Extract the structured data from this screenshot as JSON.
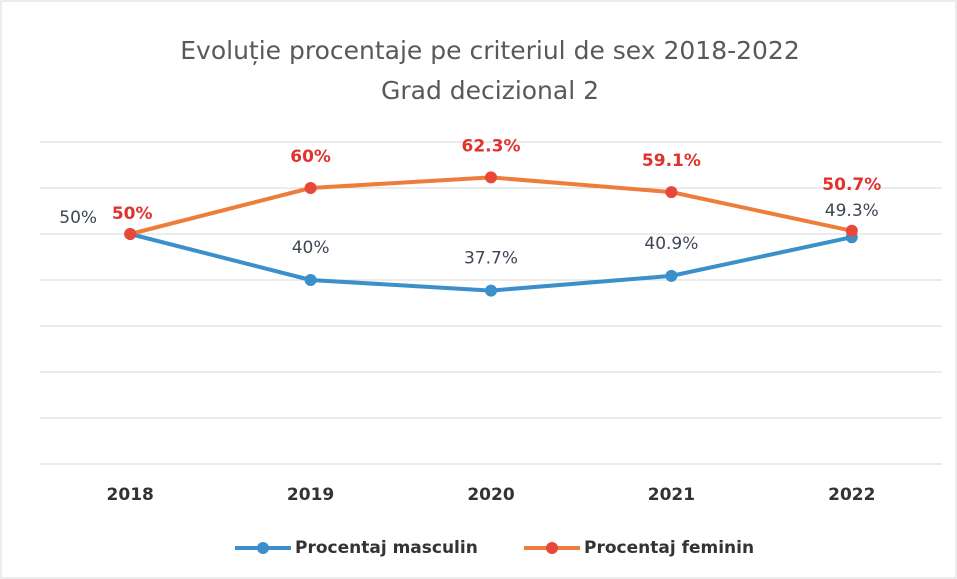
{
  "chart_data": {
    "type": "line",
    "title": "Evoluție procentaje pe criteriul de sex 2018-2022",
    "subtitle": "Grad decizional 2",
    "categories": [
      "2018",
      "2019",
      "2020",
      "2021",
      "2022"
    ],
    "series": [
      {
        "name": "Procentaj masculin",
        "color": "#3b8fca",
        "marker_color": "#3b8fca",
        "label_color": "#3d4655",
        "values": [
          50,
          40,
          37.7,
          40.9,
          49.3
        ],
        "value_labels": [
          "50%",
          "40%",
          "37.7%",
          "40.9%",
          "49.3%"
        ]
      },
      {
        "name": "Procentaj feminin",
        "color": "#ee7d3b",
        "marker_color": "#e8483a",
        "label_color": "#e0322e",
        "values": [
          50,
          60,
          62.3,
          59.1,
          50.7
        ],
        "value_labels": [
          "50%",
          "60%",
          "62.3%",
          "59.1%",
          "50.7%"
        ]
      }
    ],
    "ylim": [
      0,
      70
    ],
    "yticks": [
      0,
      10,
      20,
      30,
      40,
      50,
      60,
      70
    ],
    "grid": true,
    "legend": "bottom"
  }
}
